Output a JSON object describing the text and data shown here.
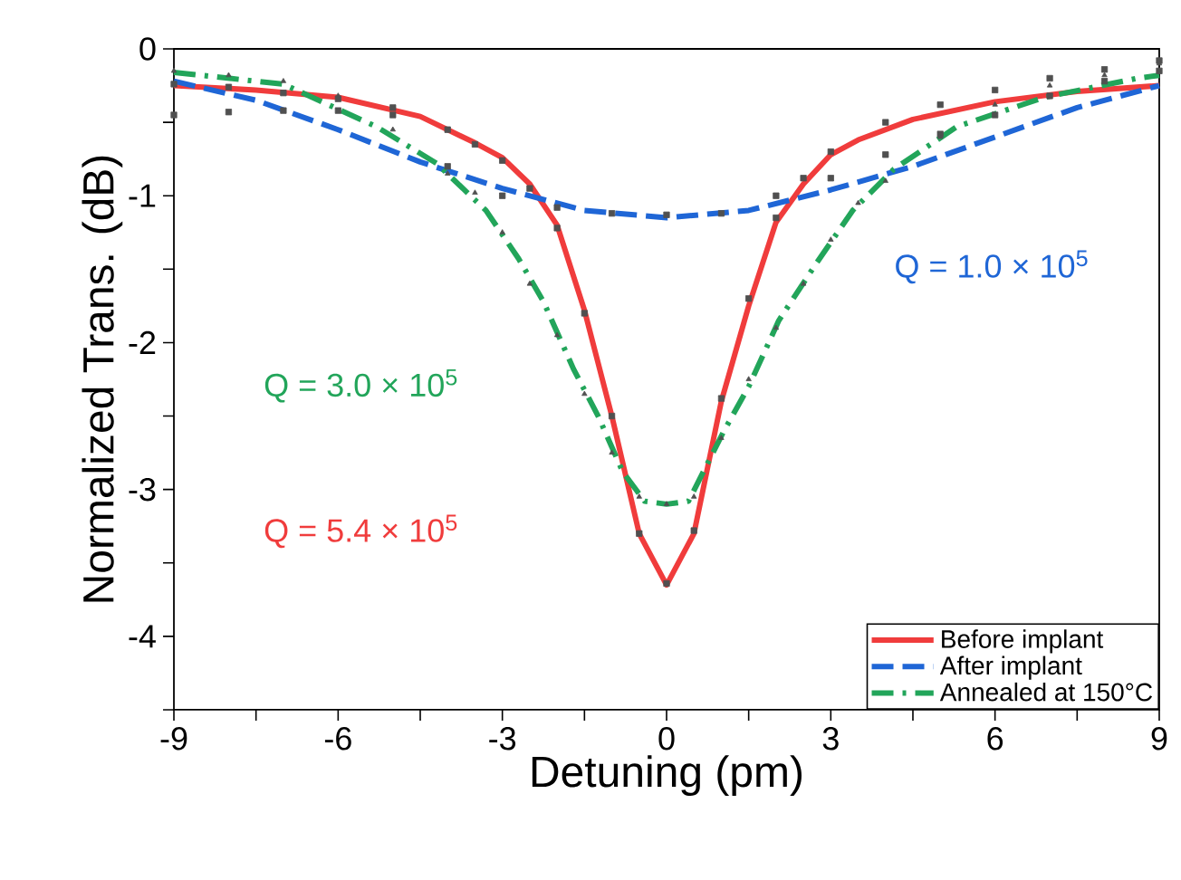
{
  "chart_data": {
    "type": "line",
    "xlabel": "Detuning (pm)",
    "ylabel": "Normalized Trans. (dB)",
    "xlim": [
      -9,
      9
    ],
    "ylim": [
      -4.5,
      0
    ],
    "xticks": [
      -9,
      {
        "value": -7.5,
        "label": null
      },
      -6,
      {
        "value": -4.5,
        "label": null
      },
      -3,
      {
        "value": -1.5,
        "label": null
      },
      0,
      {
        "value": 1.5,
        "label": null
      },
      3,
      {
        "value": 4.5,
        "label": null
      },
      6,
      {
        "value": 7.5,
        "label": null
      },
      9
    ],
    "yticks": [
      {
        "value": -4.5,
        "label": null
      },
      -4,
      {
        "value": -3.5,
        "label": null
      },
      -3,
      {
        "value": -2.5,
        "label": null
      },
      -2,
      {
        "value": -1.5,
        "label": null
      },
      -1,
      {
        "value": -0.5,
        "label": null
      },
      0
    ],
    "grid": false,
    "legend": "bottom right",
    "series": [
      {
        "type": "scatter",
        "color": "#505050",
        "marker": "square",
        "x": [
          -9,
          -8,
          -7,
          -6,
          -5,
          -4,
          -3.5,
          -3,
          -2.5,
          -2,
          -1.5,
          -1,
          -0.5,
          0,
          0.5,
          1,
          1.5,
          2,
          2.5,
          3,
          4,
          5,
          6,
          7,
          8,
          9
        ],
        "values": [
          -0.24,
          -0.26,
          -0.3,
          -0.34,
          -0.4,
          -0.55,
          -0.65,
          -0.76,
          -0.95,
          -1.22,
          -1.8,
          -2.5,
          -3.3,
          -3.64,
          -3.28,
          -2.38,
          -1.7,
          -1.15,
          -0.88,
          -0.7,
          -0.5,
          -0.38,
          -0.28,
          -0.2,
          -0.14,
          -0.08
        ]
      },
      {
        "type": "scatter",
        "color": "#505050",
        "marker": "square",
        "x": [
          -9,
          -8,
          -7,
          -6,
          -5,
          -4,
          -3,
          -2,
          -1,
          0,
          1,
          2,
          3,
          4,
          5,
          6,
          7,
          8,
          9
        ],
        "values": [
          -0.45,
          -0.43,
          -0.42,
          -0.42,
          -0.45,
          -0.8,
          -1.0,
          -1.08,
          -1.12,
          -1.13,
          -1.12,
          -1.0,
          -0.88,
          -0.72,
          -0.58,
          -0.45,
          -0.32,
          -0.22,
          -0.15
        ]
      },
      {
        "type": "scatter",
        "color": "#505050",
        "marker": "triangle",
        "x": [
          -9,
          -8,
          -7,
          -6,
          -5,
          -4,
          -3.5,
          -3,
          -2.5,
          -2,
          -1.5,
          -1,
          -0.5,
          0,
          0.5,
          1,
          1.5,
          2,
          2.5,
          3,
          3.5,
          4,
          5,
          6,
          7,
          8,
          9
        ],
        "values": [
          -0.15,
          -0.18,
          -0.22,
          -0.32,
          -0.55,
          -0.85,
          -0.98,
          -1.25,
          -1.6,
          -1.95,
          -2.35,
          -2.75,
          -3.05,
          -3.1,
          -3.05,
          -2.65,
          -2.25,
          -1.9,
          -1.6,
          -1.3,
          -1.05,
          -0.9,
          -0.6,
          -0.38,
          -0.25,
          -0.18,
          -0.1
        ]
      },
      {
        "name": "Before implant",
        "color": "#f03c3c",
        "line_style": "solid",
        "x": [
          -9,
          -7.5,
          -6,
          -4.5,
          -3.5,
          -3,
          -2.5,
          -2,
          -1.5,
          -1,
          -0.5,
          0,
          0.5,
          1,
          1.5,
          2,
          2.5,
          3,
          3.5,
          4.5,
          6,
          7.5,
          9
        ],
        "values": [
          -0.25,
          -0.28,
          -0.33,
          -0.46,
          -0.64,
          -0.74,
          -0.92,
          -1.2,
          -1.78,
          -2.5,
          -3.3,
          -3.65,
          -3.3,
          -2.4,
          -1.75,
          -1.18,
          -0.92,
          -0.72,
          -0.62,
          -0.48,
          -0.36,
          -0.29,
          -0.25
        ]
      },
      {
        "name": "After implant",
        "color": "#1f66d6",
        "line_style": "dashed",
        "x": [
          -9,
          -7.5,
          -6,
          -4.5,
          -3,
          -1.5,
          0,
          1.5,
          3,
          4.5,
          6,
          7.5,
          9
        ],
        "values": [
          -0.22,
          -0.35,
          -0.55,
          -0.77,
          -0.95,
          -1.1,
          -1.15,
          -1.1,
          -0.96,
          -0.8,
          -0.6,
          -0.4,
          -0.25
        ]
      },
      {
        "name": "Annealed at 150°C",
        "color": "#22a55a",
        "line_style": "dashdot",
        "x": [
          -9,
          -7,
          -5.3,
          -4.2,
          -3.3,
          -2.7,
          -2.25,
          -1.7,
          -1.25,
          -0.8,
          -0.4,
          0,
          0.4,
          1.05,
          1.5,
          2.05,
          2.7,
          3.4,
          4.15,
          5.3,
          6.9,
          8.6,
          9
        ],
        "values": [
          -0.16,
          -0.24,
          -0.53,
          -0.78,
          -1.1,
          -1.43,
          -1.72,
          -2.18,
          -2.5,
          -2.88,
          -3.08,
          -3.1,
          -3.08,
          -2.6,
          -2.3,
          -1.85,
          -1.48,
          -1.1,
          -0.82,
          -0.53,
          -0.33,
          -0.2,
          -0.18
        ]
      }
    ],
    "annotations": [
      "Q = 5.4 × 10$^{5}$",
      "Q = 1.0 × 10$^{5}$",
      "Q = 3.0 × 10$^{5}$"
    ]
  }
}
